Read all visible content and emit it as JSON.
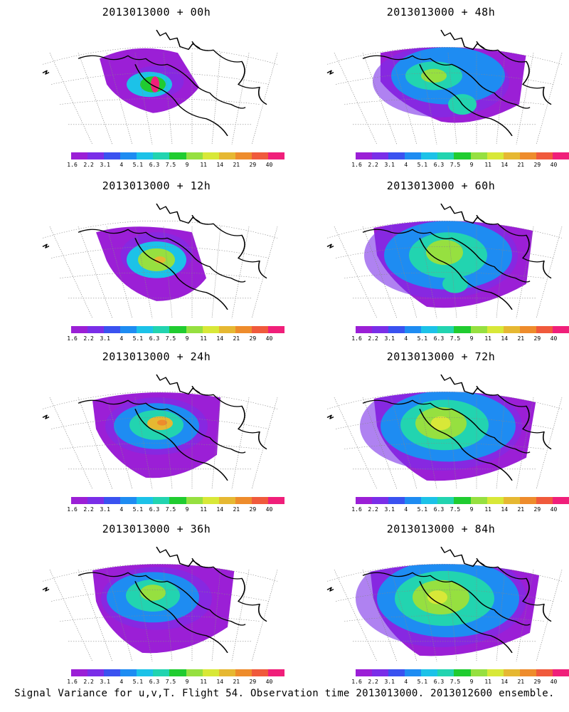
{
  "caption": "Signal Variance for u,v,T. Flight 54. Observation time 2013013000. 2013012600 ensemble.",
  "colorbar": {
    "labels": [
      "1.6",
      "2.2",
      "3.1",
      "4",
      "5.1",
      "6.3",
      "7.5",
      "9",
      "11",
      "14",
      "21",
      "29",
      "40"
    ],
    "colors": [
      "#9b1fd6",
      "#7a2ee8",
      "#3a52f0",
      "#1e8cf2",
      "#1cc2e8",
      "#22d4b0",
      "#20cc30",
      "#96e040",
      "#d8e838",
      "#e6b832",
      "#ee8c2c",
      "#f05a3c",
      "#f01f7a"
    ]
  },
  "panels": [
    {
      "title": "2013013000 + 00h"
    },
    {
      "title": "2013013000 + 48h"
    },
    {
      "title": "2013013000 + 12h"
    },
    {
      "title": "2013013000 + 60h"
    },
    {
      "title": "2013013000 + 24h"
    },
    {
      "title": "2013013000 + 72h"
    },
    {
      "title": "2013013000 + 36h"
    },
    {
      "title": "2013013000 + 84h"
    }
  ]
}
